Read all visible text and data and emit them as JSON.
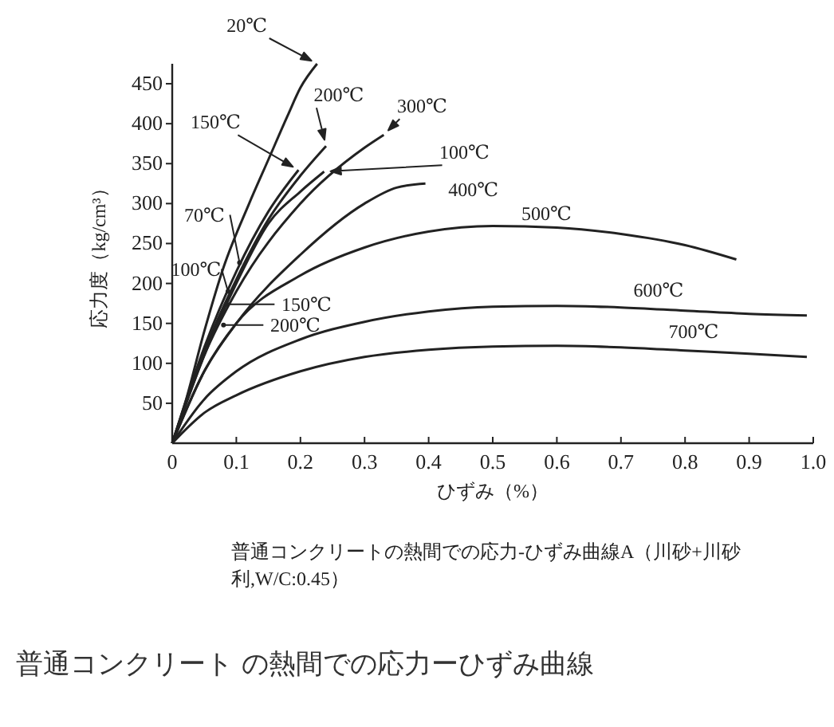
{
  "chart_data": {
    "type": "line",
    "xlabel": "ひずみ（%）",
    "ylabel": "応力度（kg/cm³）",
    "xlim": [
      0,
      1.0
    ],
    "ylim": [
      0,
      475
    ],
    "xticks": [
      0,
      0.1,
      0.2,
      0.3,
      0.4,
      0.5,
      0.6,
      0.7,
      0.8,
      0.9,
      {
        "value": 1.0,
        "label": "1.0"
      }
    ],
    "yticks": [
      50,
      100,
      150,
      200,
      250,
      300,
      350,
      400,
      450
    ],
    "grid": false,
    "marker": "none",
    "line_style": "solid",
    "series": [
      {
        "name": "20℃",
        "color": "#222222",
        "x": [
          0,
          0.02,
          0.05,
          0.08,
          0.12,
          0.15,
          0.18,
          0.2,
          0.226
        ],
        "values": [
          0,
          50,
          140,
          220,
          300,
          355,
          410,
          445,
          475
        ]
      },
      {
        "name": "150℃",
        "color": "#222222",
        "x": [
          0,
          0.05,
          0.1,
          0.15,
          0.197
        ],
        "values": [
          0,
          120,
          215,
          290,
          342
        ]
      },
      {
        "name": "200℃",
        "color": "#222222",
        "x": [
          0,
          0.05,
          0.1,
          0.15,
          0.2,
          0.24
        ],
        "values": [
          0,
          115,
          205,
          280,
          335,
          372
        ]
      },
      {
        "name": "300℃",
        "color": "#222222",
        "x": [
          0,
          0.05,
          0.1,
          0.2,
          0.3,
          0.33
        ],
        "values": [
          0,
          110,
          190,
          300,
          370,
          386
        ]
      },
      {
        "name": "100℃",
        "color": "#222222",
        "x": [
          0,
          0.05,
          0.1,
          0.15,
          0.2,
          0.237
        ],
        "values": [
          0,
          110,
          200,
          275,
          315,
          340
        ]
      },
      {
        "name": "400℃",
        "color": "#222222",
        "x": [
          0,
          0.05,
          0.1,
          0.2,
          0.3,
          0.35,
          0.395
        ],
        "values": [
          0,
          90,
          150,
          236,
          300,
          320,
          325
        ]
      },
      {
        "name": "500℃",
        "color": "#222222",
        "x": [
          0,
          0.05,
          0.1,
          0.2,
          0.3,
          0.4,
          0.5,
          0.6,
          0.7,
          0.8,
          0.88
        ],
        "values": [
          0,
          90,
          150,
          210,
          245,
          265,
          272,
          270,
          262,
          248,
          230
        ]
      },
      {
        "name": "600℃",
        "color": "#222222",
        "x": [
          0,
          0.05,
          0.1,
          0.2,
          0.3,
          0.4,
          0.5,
          0.6,
          0.7,
          0.8,
          0.9,
          0.99
        ],
        "values": [
          0,
          55,
          90,
          130,
          152,
          165,
          171,
          172,
          170,
          166,
          162,
          160
        ]
      },
      {
        "name": "700℃",
        "color": "#222222",
        "x": [
          0,
          0.05,
          0.1,
          0.2,
          0.3,
          0.4,
          0.5,
          0.6,
          0.7,
          0.8,
          0.9,
          0.99
        ],
        "values": [
          0,
          38,
          60,
          90,
          108,
          117,
          121,
          122,
          120,
          116,
          112,
          108
        ]
      }
    ],
    "annotations": [
      {
        "text": "70℃",
        "x": 0.105,
        "y": 226
      },
      {
        "text": "100℃",
        "x": 0.087,
        "y": 190
      },
      {
        "text": "150℃",
        "x": 0.085,
        "y": 174
      },
      {
        "text": "200℃",
        "x": 0.08,
        "y": 148
      },
      "普通コンクリートの熱間での応力-ひずみ曲線A（川砂+川砂利,W/C:0.45）",
      "普通コンクリート の熱間での応力ーひずみ曲線"
    ]
  }
}
